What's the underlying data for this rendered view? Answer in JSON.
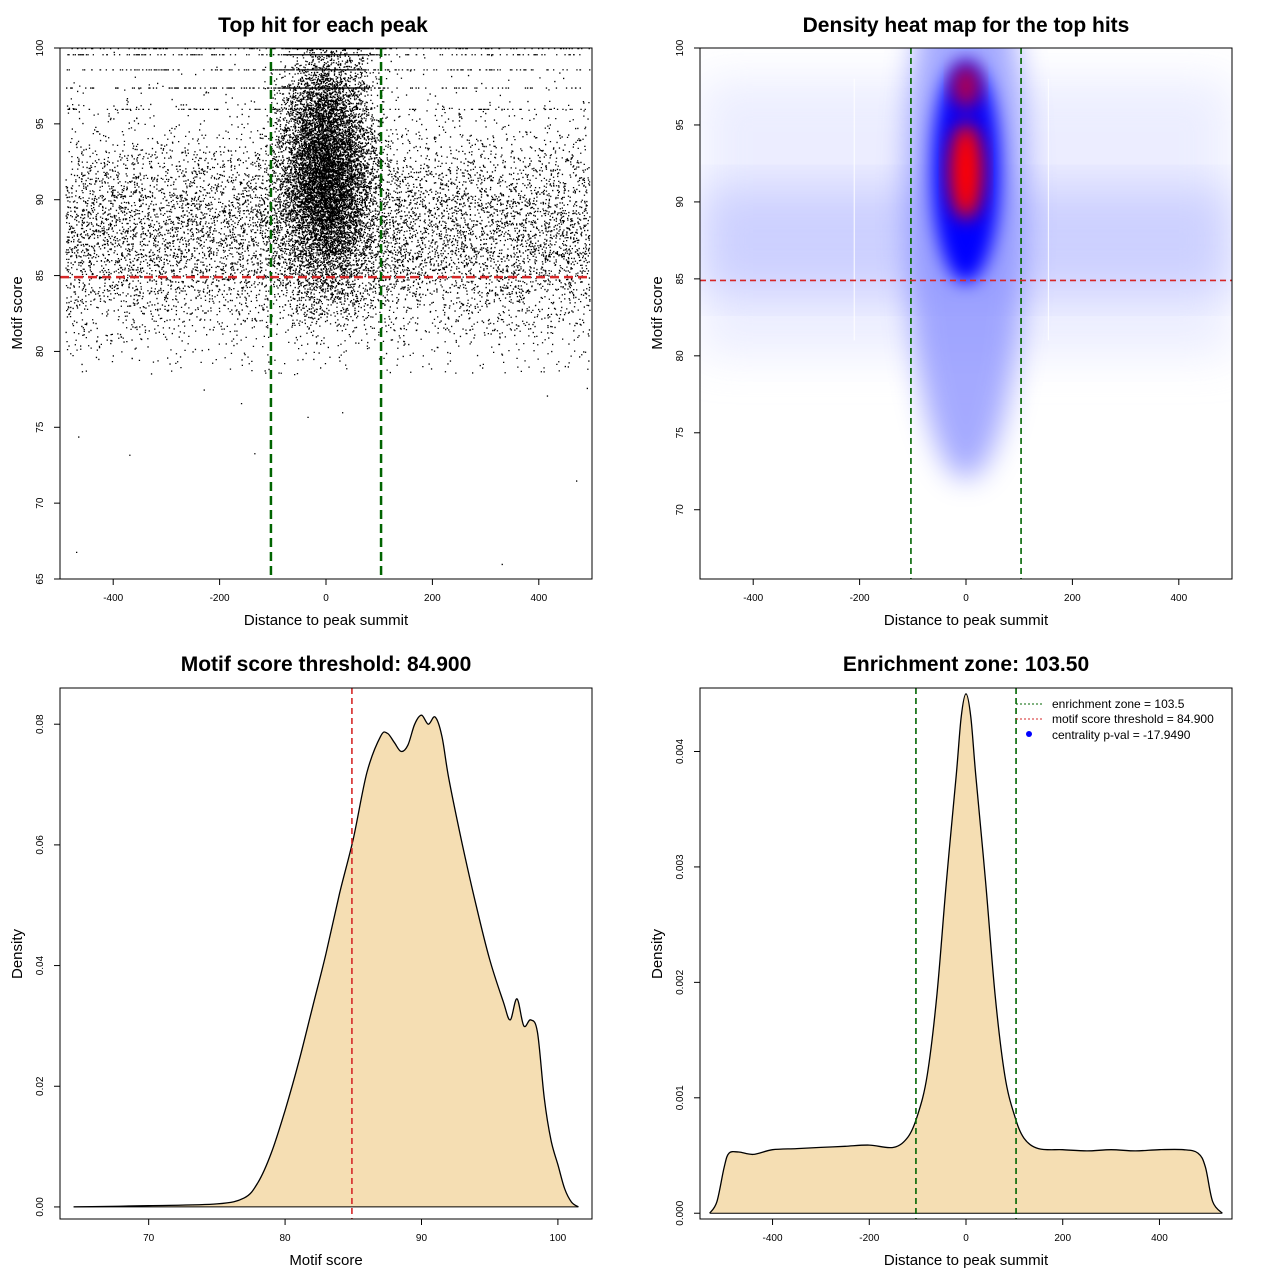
{
  "colors": {
    "enrichment_line": "#006400",
    "threshold_line": "#d62728",
    "density_fill": "#f5deb3",
    "points": "#000000",
    "heat_low": "#ffffff",
    "heat_mid": "#0000ff",
    "heat_high": "#ff0000",
    "legend_dot": "#0000ff"
  },
  "chart_data": [
    {
      "type": "scatter",
      "title": "Top hit for each peak",
      "xlabel": "Distance to peak summit",
      "ylabel": "Motif score",
      "xlim": [
        -500,
        500
      ],
      "ylim": [
        65,
        100
      ],
      "xticks": [
        -400,
        -200,
        0,
        200,
        400
      ],
      "yticks": [
        65,
        70,
        75,
        80,
        85,
        90,
        95,
        100
      ],
      "enrichment_zone": 103.5,
      "threshold": 84.9,
      "outliers": [
        [
          -466,
          74.4
        ],
        [
          -370,
          73.2
        ],
        [
          -470,
          66.8
        ],
        [
          -230,
          77.5
        ],
        [
          -160,
          76.6
        ],
        [
          -135,
          73.3
        ],
        [
          -35,
          75.7
        ],
        [
          30,
          76.0
        ],
        [
          330,
          66.0
        ],
        [
          470,
          71.5
        ],
        [
          415,
          77.1
        ],
        [
          490,
          77.6
        ]
      ],
      "background_band": {
        "x": [
          -490,
          495
        ],
        "score_levels": [
          100,
          99.6,
          98.6,
          97.4,
          96.0
        ]
      }
    },
    {
      "type": "heatmap",
      "title": "Density heat map for the top hits",
      "xlabel": "Distance to peak summit",
      "ylabel": "Motif score",
      "xlim": [
        -500,
        500
      ],
      "ylim": [
        65.5,
        100
      ],
      "xticks": [
        -400,
        -200,
        0,
        200,
        400
      ],
      "yticks": [
        70,
        75,
        80,
        85,
        90,
        95,
        100
      ],
      "enrichment_zone": 103.5,
      "threshold": 84.9,
      "hotspots": [
        {
          "x": 0,
          "y": 92,
          "intensity": 1.0
        },
        {
          "x": 0,
          "y": 97.5,
          "intensity": 0.7
        }
      ]
    },
    {
      "type": "area",
      "title": "Motif score threshold: 84.900",
      "xlabel": "Motif score",
      "ylabel": "Density",
      "xlim": [
        63.5,
        102.5
      ],
      "ylim": [
        -0.002,
        0.086
      ],
      "xticks": [
        70,
        80,
        90,
        100
      ],
      "yticks": [
        0.0,
        0.02,
        0.04,
        0.06,
        0.08
      ],
      "ytick_labels": [
        "0.00",
        "0.02",
        "0.04",
        "0.06",
        "0.08"
      ],
      "threshold": 84.9,
      "x": [
        64.5,
        70,
        75,
        77,
        78,
        79,
        80,
        81,
        82,
        83,
        84,
        85,
        86,
        87,
        87.5,
        88,
        88.5,
        89,
        89.5,
        90,
        90.5,
        91,
        91.5,
        92,
        93,
        94,
        95,
        96,
        96.5,
        97,
        97.5,
        98,
        98.5,
        99,
        99.5,
        100,
        100.5,
        101,
        101.5
      ],
      "y": [
        0.0,
        0.0002,
        0.0005,
        0.0015,
        0.004,
        0.009,
        0.016,
        0.024,
        0.033,
        0.042,
        0.052,
        0.061,
        0.072,
        0.078,
        0.0785,
        0.077,
        0.0755,
        0.0765,
        0.08,
        0.0815,
        0.08,
        0.0812,
        0.078,
        0.071,
        0.06,
        0.05,
        0.041,
        0.034,
        0.031,
        0.0345,
        0.03,
        0.031,
        0.029,
        0.018,
        0.011,
        0.007,
        0.003,
        0.0008,
        0.0
      ]
    },
    {
      "type": "area",
      "title": "Enrichment zone: 103.50",
      "xlabel": "Distance to peak summit",
      "ylabel": "Density",
      "xlim": [
        -550,
        550
      ],
      "ylim": [
        -5e-05,
        0.00455
      ],
      "xticks": [
        -400,
        -200,
        0,
        200,
        400
      ],
      "yticks": [
        0.0,
        0.001,
        0.002,
        0.003,
        0.004
      ],
      "ytick_labels": [
        "0.000",
        "0.001",
        "0.002",
        "0.003",
        "0.004"
      ],
      "enrichment_zone": 103.5,
      "x": [
        -530,
        -515,
        -500,
        -490,
        -470,
        -440,
        -400,
        -350,
        -300,
        -250,
        -200,
        -150,
        -120,
        -100,
        -80,
        -60,
        -40,
        -20,
        -10,
        0,
        10,
        20,
        40,
        60,
        80,
        100,
        120,
        150,
        200,
        250,
        300,
        350,
        400,
        450,
        480,
        495,
        510,
        530
      ],
      "y": [
        0.0,
        0.0001,
        0.0004,
        0.00052,
        0.00053,
        0.00051,
        0.00055,
        0.00056,
        0.00057,
        0.00058,
        0.00059,
        0.00057,
        0.00066,
        0.00085,
        0.0012,
        0.0019,
        0.0029,
        0.0038,
        0.0043,
        0.0045,
        0.0043,
        0.0038,
        0.0029,
        0.0019,
        0.0012,
        0.00085,
        0.00065,
        0.00056,
        0.00055,
        0.00054,
        0.00055,
        0.00054,
        0.00055,
        0.00055,
        0.00052,
        0.0004,
        0.0001,
        0.0
      ],
      "legend": {
        "position": "top-right",
        "entries": [
          "enrichment zone = 103.5",
          "motif score threshold = 84.900",
          "centrality p-val = -17.9490"
        ]
      }
    }
  ]
}
